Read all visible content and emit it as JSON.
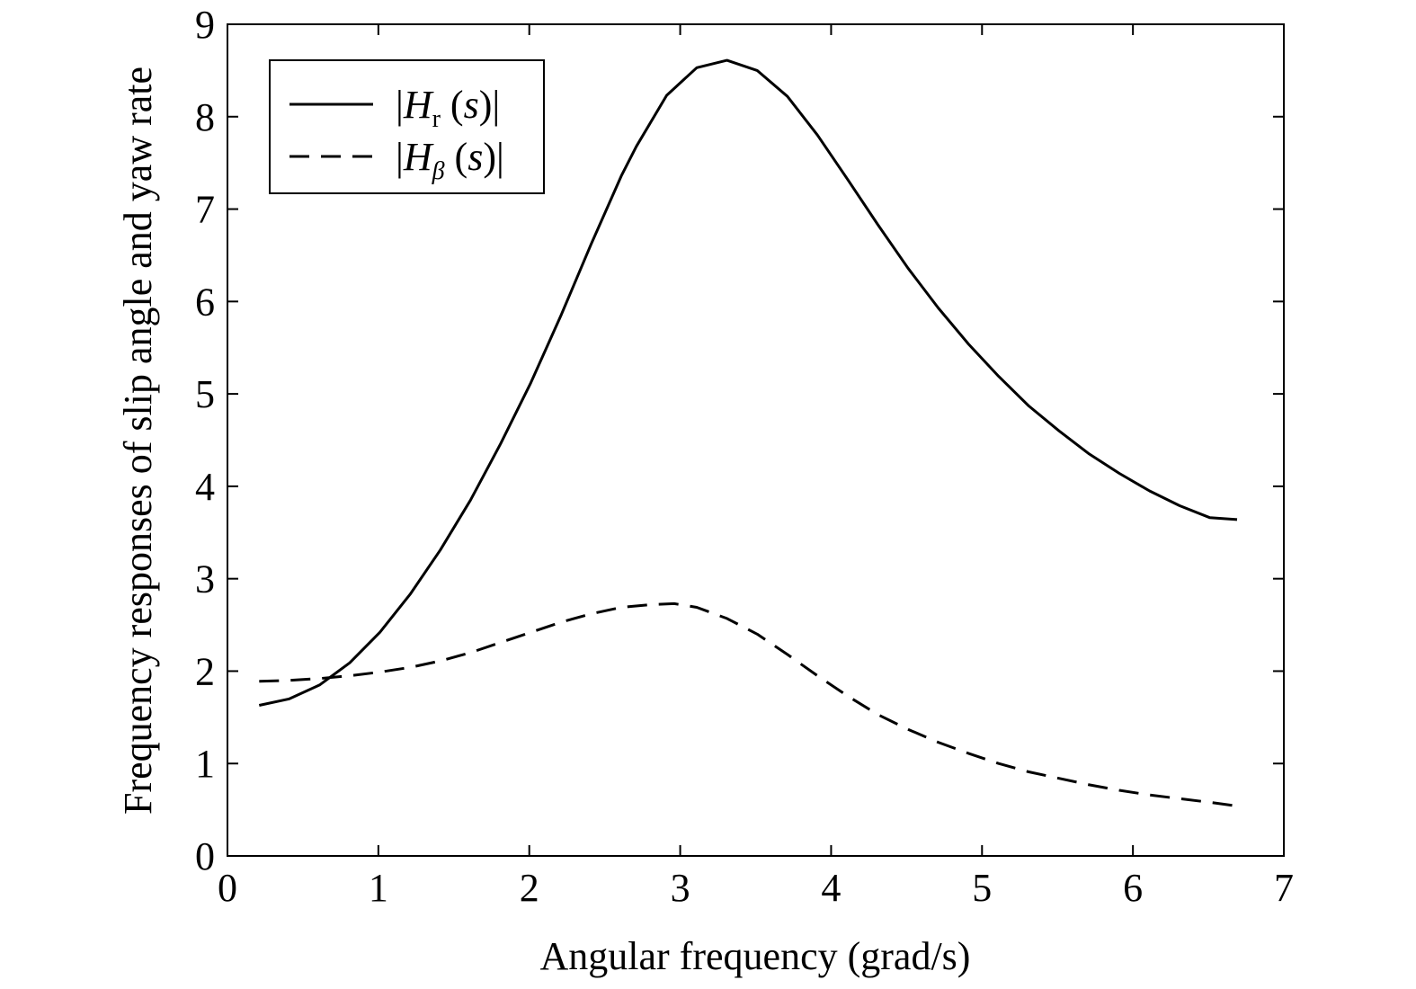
{
  "chart_data": {
    "type": "line",
    "title": "",
    "xlabel": "Angular frequency (grad/s)",
    "ylabel": "Frequency responses of slip angle and yaw rate",
    "xlim": [
      0,
      7
    ],
    "ylim": [
      0,
      9
    ],
    "xticks": [
      "0",
      "1",
      "2",
      "3",
      "4",
      "5",
      "6",
      "7"
    ],
    "yticks": [
      "0",
      "1",
      "2",
      "3",
      "4",
      "5",
      "6",
      "7",
      "8",
      "9"
    ],
    "grid": false,
    "legend_position": "top-left",
    "series": [
      {
        "name": "|Hr (s)|",
        "legend": {
          "pre": "|",
          "main": "H",
          "sub": "r",
          "post_open": " (",
          "var": "s",
          "post_close": ")|"
        },
        "style": "solid",
        "color": "#000000",
        "x": [
          0.21,
          0.41,
          0.61,
          0.81,
          1.01,
          1.21,
          1.41,
          1.61,
          1.81,
          2.01,
          2.21,
          2.41,
          2.61,
          2.71,
          2.91,
          3.11,
          3.31,
          3.51,
          3.71,
          3.91,
          4.11,
          4.31,
          4.51,
          4.71,
          4.91,
          5.11,
          5.31,
          5.51,
          5.71,
          5.91,
          6.11,
          6.31,
          6.51,
          6.69
        ],
        "y": [
          1.63,
          1.7,
          1.85,
          2.09,
          2.42,
          2.83,
          3.31,
          3.85,
          4.46,
          5.12,
          5.85,
          6.62,
          7.36,
          7.68,
          8.23,
          8.53,
          8.61,
          8.5,
          8.22,
          7.8,
          7.32,
          6.83,
          6.36,
          5.93,
          5.54,
          5.19,
          4.87,
          4.6,
          4.35,
          4.14,
          3.95,
          3.79,
          3.66,
          3.64
        ]
      },
      {
        "name": "|Hβ (s)|",
        "legend": {
          "pre": "|",
          "main": "H",
          "sub": "β",
          "post_open": " (",
          "var": "s",
          "post_close": ")|"
        },
        "style": "dashed",
        "color": "#000000",
        "x": [
          0.21,
          0.41,
          0.61,
          0.81,
          1.01,
          1.21,
          1.41,
          1.61,
          1.81,
          2.01,
          2.21,
          2.41,
          2.61,
          2.81,
          2.96,
          3.11,
          3.31,
          3.51,
          3.71,
          3.91,
          4.11,
          4.31,
          4.51,
          4.71,
          4.91,
          5.11,
          5.31,
          5.51,
          5.71,
          5.91,
          6.11,
          6.31,
          6.51,
          6.69
        ],
        "y": [
          1.89,
          1.9,
          1.92,
          1.95,
          1.99,
          2.04,
          2.11,
          2.2,
          2.31,
          2.42,
          2.53,
          2.62,
          2.69,
          2.72,
          2.73,
          2.69,
          2.57,
          2.4,
          2.18,
          1.95,
          1.73,
          1.53,
          1.37,
          1.23,
          1.11,
          1.0,
          0.91,
          0.84,
          0.77,
          0.71,
          0.66,
          0.62,
          0.58,
          0.54
        ]
      }
    ]
  }
}
